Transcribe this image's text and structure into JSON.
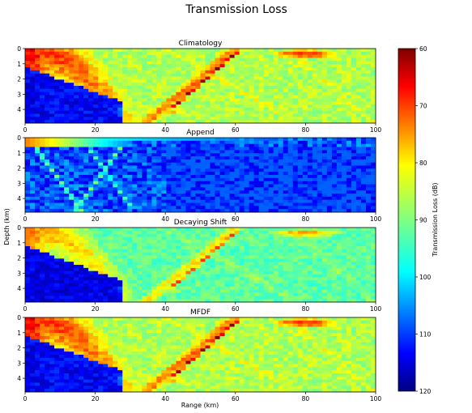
{
  "title": "Transmission Loss",
  "shared_ylabel": "Depth (km)",
  "shared_xlabel": "Range (km)",
  "colorbar": {
    "label": "Transmission Loss (dB)",
    "colormap": "jet",
    "ticks": [
      "60",
      "70",
      "80",
      "90",
      "100",
      "110",
      "120"
    ],
    "range": [
      60,
      120
    ]
  },
  "chart_data": [
    {
      "type": "heatmap",
      "title": "Climatology",
      "xlim": [
        0,
        100
      ],
      "ylim": [
        0,
        4.9
      ],
      "xticks": [
        "0",
        "20",
        "40",
        "60",
        "80",
        "100"
      ],
      "yticks": [
        "0",
        "1",
        "2",
        "3",
        "4"
      ],
      "pattern": "convergence-zone"
    },
    {
      "type": "heatmap",
      "title": "Append",
      "xlim": [
        0,
        100
      ],
      "ylim": [
        0,
        4.9
      ],
      "xticks": [
        "0",
        "20",
        "40",
        "60",
        "80",
        "100"
      ],
      "yticks": [
        "0",
        "1",
        "2",
        "3",
        "4"
      ],
      "pattern": "surface-duct-scatter"
    },
    {
      "type": "heatmap",
      "title": "Decaying Shift",
      "xlim": [
        0,
        100
      ],
      "ylim": [
        0,
        4.9
      ],
      "xticks": [
        "0",
        "20",
        "40",
        "60",
        "80",
        "100"
      ],
      "yticks": [
        "0",
        "1",
        "2",
        "3",
        "4"
      ],
      "pattern": "convergence-zone-weak"
    },
    {
      "type": "heatmap",
      "title": "MFDF",
      "xlim": [
        0,
        100
      ],
      "ylim": [
        0,
        4.9
      ],
      "xticks": [
        "0",
        "20",
        "40",
        "60",
        "80",
        "100"
      ],
      "yticks": [
        "0",
        "1",
        "2",
        "3",
        "4"
      ],
      "pattern": "convergence-zone"
    }
  ]
}
